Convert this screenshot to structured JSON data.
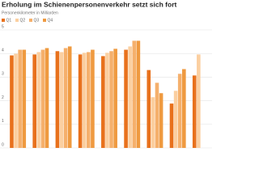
{
  "chart_data": {
    "type": "bar",
    "title": "Erholung im Schienenpersonenverkehr setzt sich fort",
    "subtitle": "Personenkilometer in Milliarden",
    "categories": [
      null,
      null,
      null,
      null,
      null,
      null,
      null,
      null,
      null
    ],
    "series": [
      {
        "name": "Q1",
        "color": "#e8711c",
        "values": [
          3.92,
          3.96,
          4.1,
          3.96,
          3.89,
          4.16,
          3.3,
          1.88,
          3.07
        ]
      },
      {
        "name": "Q2",
        "color": "#fbcfa0",
        "values": [
          3.99,
          4.06,
          4.06,
          4.03,
          4.03,
          4.3,
          2.15,
          2.42,
          3.96
        ]
      },
      {
        "name": "Q3",
        "color": "#f5b06c",
        "values": [
          4.16,
          4.16,
          4.23,
          4.06,
          4.1,
          4.54,
          2.76,
          3.14,
          null
        ]
      },
      {
        "name": "Q4",
        "color": "#ef9a40",
        "values": [
          4.16,
          4.23,
          4.3,
          4.16,
          4.2,
          4.54,
          2.32,
          3.34,
          null
        ]
      }
    ],
    "ylim": [
      0,
      5
    ],
    "yticks": [
      0,
      1,
      2,
      3,
      4,
      5
    ],
    "grid": true
  }
}
